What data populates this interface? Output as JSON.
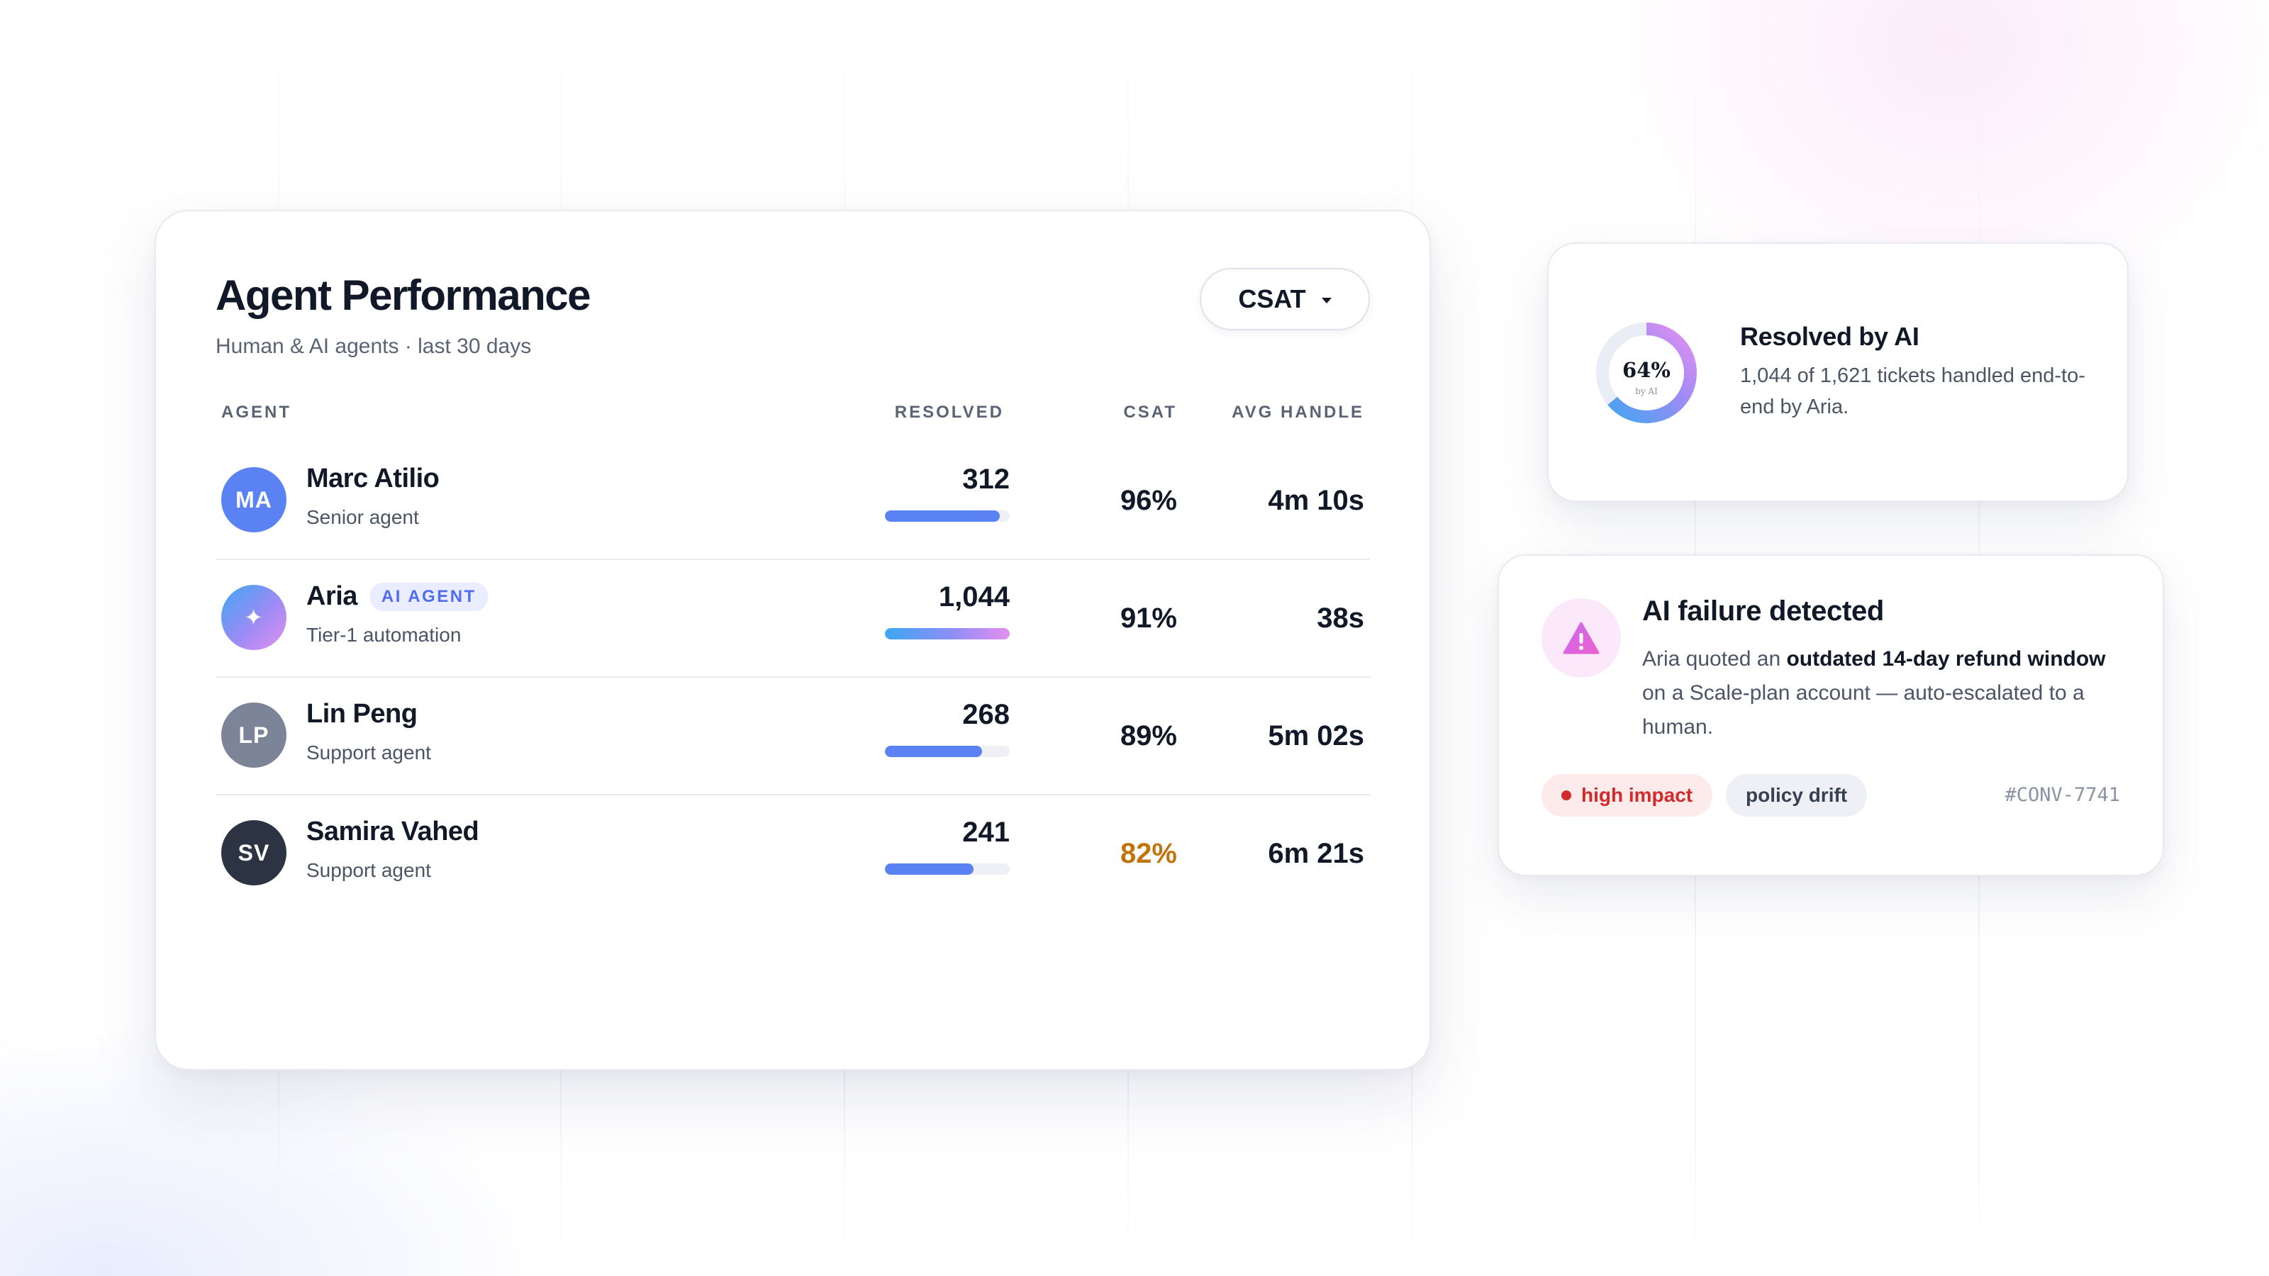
{
  "performance": {
    "title": "Agent Performance",
    "subtitle": "Human & AI agents · last 30 days",
    "metric_selector": {
      "value": "CSAT",
      "icon": "chevron-down-icon"
    },
    "columns": {
      "agent": "AGENT",
      "resolved": "RESOLVED",
      "csat": "CSAT",
      "avg_handle": "AVG HANDLE"
    },
    "rows": [
      {
        "initials": "MA",
        "name": "Marc Atilio",
        "role": "Senior agent",
        "badge": "",
        "resolved": "312",
        "resolved_fraction": 0.92,
        "csat": "96%",
        "avg_handle": "4m 10s",
        "avatar_color": "#5b82f3",
        "csat_color": "#111827"
      },
      {
        "initials": "✦",
        "name": "Aria",
        "role": "Tier-1 automation",
        "badge": "AI AGENT",
        "resolved": "1,044",
        "resolved_fraction": 1.0,
        "csat": "91%",
        "avg_handle": "38s",
        "avatar_color": "gradient",
        "csat_color": "#111827"
      },
      {
        "initials": "LP",
        "name": "Lin Peng",
        "role": "Support agent",
        "badge": "",
        "resolved": "268",
        "resolved_fraction": 0.78,
        "csat": "89%",
        "avg_handle": "5m 02s",
        "avatar_color": "#7c8497",
        "csat_color": "#111827"
      },
      {
        "initials": "SV",
        "name": "Samira Vahed",
        "role": "Support agent",
        "badge": "",
        "resolved": "241",
        "resolved_fraction": 0.71,
        "csat": "82%",
        "avg_handle": "6m 21s",
        "avatar_color": "#2c3444",
        "csat_color": "#c2740c"
      }
    ]
  },
  "ai_resolution": {
    "percent_label": "64%",
    "percent": 64,
    "donut_caption": "by AI",
    "title": "Resolved by AI",
    "body": "1,044 of 1,621 tickets handled end-to-end by Aria."
  },
  "failure": {
    "icon": "warning-icon",
    "title": "AI failure detected",
    "body_parts": {
      "pre": "Aria quoted an ",
      "bold": "outdated 14-day refund window",
      "post": " on a Scale-plan account — auto-escalated to a human."
    },
    "tags": {
      "impact": "high impact",
      "drift": "policy drift"
    },
    "conversation_id": "#CONV-7741"
  },
  "colors": {
    "accent": "#5b82f3",
    "ai_gradient_start": "#3ea6f2",
    "ai_gradient_end": "#e48ff0",
    "danger": "#d12b2b",
    "warning_text": "#c2740c"
  }
}
